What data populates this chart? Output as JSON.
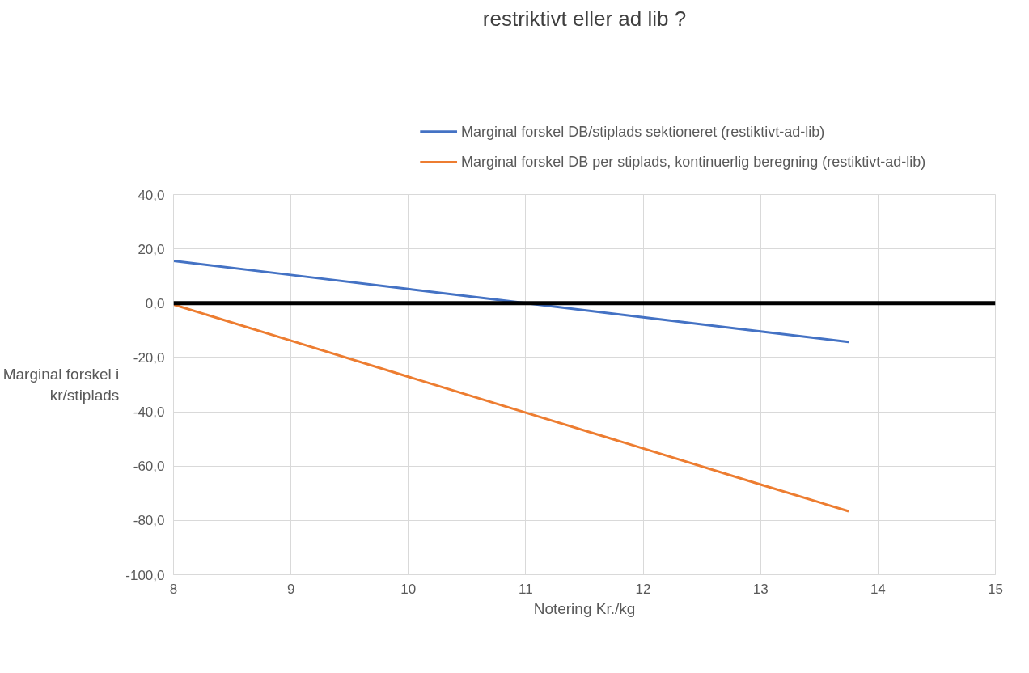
{
  "chart_data": {
    "type": "line",
    "title": "restriktivt eller ad lib ?",
    "xlabel": "Notering Kr./kg",
    "ylabel": "Marginal forskel i kr/stiplads",
    "x": [
      8,
      9,
      10,
      11,
      12,
      13,
      13.75
    ],
    "series": [
      {
        "name": "Marginal forskel DB/stiplads sektioneret (restiktivt-ad-lib)",
        "color": "#4472c4",
        "values": [
          15.6,
          10.4,
          5.2,
          0,
          -5.2,
          -10.4,
          -14.3
        ]
      },
      {
        "name": "Marginal forskel DB per stiplads, kontinuerlig beregning (restiktivt-ad-lib)",
        "color": "#ed7d31",
        "values": [
          -0.5,
          -13.8,
          -27.1,
          -40.3,
          -53.5,
          -66.8,
          -76.6
        ]
      }
    ],
    "xlim": [
      8,
      15
    ],
    "xticks": [
      8,
      9,
      10,
      11,
      12,
      13,
      14,
      15
    ],
    "ylim": [
      -100,
      40
    ],
    "yticks": [
      {
        "value": -100,
        "label": "-100,0"
      },
      {
        "value": -80,
        "label": "-80,0"
      },
      {
        "value": -60,
        "label": "-60,0"
      },
      {
        "value": -40,
        "label": "-40,0"
      },
      {
        "value": -20,
        "label": "-20,0"
      },
      {
        "value": 0,
        "label": "0,0"
      },
      {
        "value": 20,
        "label": "20,0"
      },
      {
        "value": 40,
        "label": "40,0"
      }
    ],
    "ref_lines": [
      {
        "axis": "y",
        "value": 0,
        "color": "#000000"
      }
    ],
    "grid": true,
    "legend": "top",
    "marker": "none",
    "line_style": "solid"
  }
}
